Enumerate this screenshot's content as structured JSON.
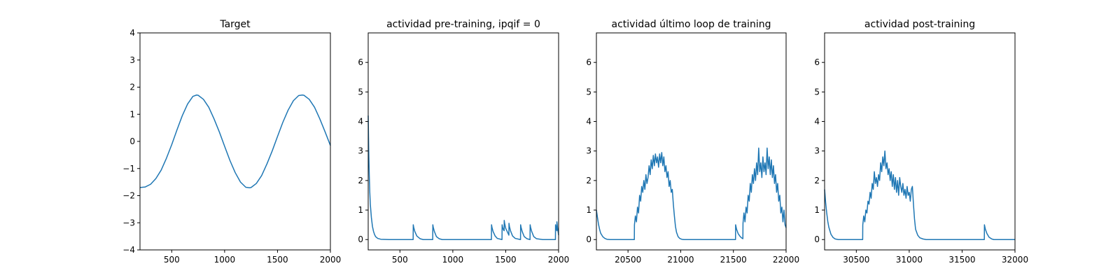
{
  "figure": {
    "line_color": "#1f77b4"
  },
  "chart_data": [
    {
      "type": "line",
      "title": "Target",
      "xlabel": "",
      "ylabel": "",
      "xlim": [
        200,
        2000
      ],
      "ylim": [
        -4,
        4
      ],
      "xticks": [
        500,
        1000,
        1500,
        2000
      ],
      "yticks": [
        -4,
        -3,
        -2,
        -1,
        0,
        1,
        2,
        3,
        4
      ],
      "grid": false,
      "series": [
        {
          "x": [
            200,
            250,
            300,
            350,
            400,
            450,
            500,
            550,
            600,
            650,
            700,
            735,
            750,
            800,
            850,
            900,
            950,
            1000,
            1050,
            1100,
            1150,
            1200,
            1235,
            1250,
            1300,
            1350,
            1400,
            1450,
            1500,
            1550,
            1600,
            1650,
            1700,
            1735,
            1750,
            1800,
            1850,
            1900,
            1950,
            2000
          ],
          "y": [
            -1.7,
            -1.68,
            -1.58,
            -1.37,
            -1.06,
            -0.62,
            -0.12,
            0.43,
            0.95,
            1.38,
            1.66,
            1.71,
            1.7,
            1.55,
            1.26,
            0.83,
            0.35,
            -0.18,
            -0.7,
            -1.15,
            -1.5,
            -1.69,
            -1.71,
            -1.7,
            -1.55,
            -1.26,
            -0.83,
            -0.35,
            0.18,
            0.7,
            1.15,
            1.5,
            1.69,
            1.71,
            1.7,
            1.55,
            1.26,
            0.83,
            0.35,
            -0.15
          ]
        }
      ]
    },
    {
      "type": "line",
      "title": "actividad pre-training, ipqif = 0",
      "xlabel": "",
      "ylabel": "",
      "xlim": [
        200,
        2000
      ],
      "ylim": [
        -0.35,
        7.0
      ],
      "xticks": [
        500,
        1000,
        1500,
        2000
      ],
      "yticks": [
        0,
        1,
        2,
        3,
        4,
        5,
        6
      ],
      "grid": false,
      "series": [
        {
          "x": [
            200,
            205,
            210,
            215,
            220,
            230,
            240,
            250,
            260,
            270,
            290,
            320,
            400,
            500,
            600,
            625,
            626,
            630,
            640,
            660,
            690,
            720,
            810,
            811,
            815,
            825,
            845,
            870,
            900,
            1000,
            1100,
            1200,
            1300,
            1365,
            1366,
            1370,
            1380,
            1400,
            1420,
            1465,
            1466,
            1470,
            1480,
            1485,
            1486,
            1490,
            1500,
            1530,
            1531,
            1535,
            1545,
            1565,
            1590,
            1640,
            1641,
            1645,
            1655,
            1675,
            1700,
            1730,
            1731,
            1735,
            1745,
            1765,
            1790,
            1850,
            1900,
            1970,
            1971,
            1975,
            1983,
            1984,
            1990,
            2000
          ],
          "y": [
            4.2,
            3.0,
            2.2,
            1.6,
            1.2,
            0.75,
            0.45,
            0.28,
            0.17,
            0.1,
            0.04,
            0.01,
            0,
            0,
            0,
            0,
            0.5,
            0.42,
            0.28,
            0.12,
            0.03,
            0,
            0,
            0.5,
            0.42,
            0.28,
            0.1,
            0.03,
            0,
            0,
            0,
            0,
            0,
            0,
            0.5,
            0.42,
            0.28,
            0.12,
            0.04,
            0,
            0.5,
            0.42,
            0.32,
            0.3,
            0.65,
            0.55,
            0.38,
            0.15,
            0.55,
            0.45,
            0.3,
            0.12,
            0.04,
            0,
            0.5,
            0.42,
            0.28,
            0.1,
            0.03,
            0,
            0.5,
            0.42,
            0.28,
            0.1,
            0.03,
            0,
            0,
            0,
            0.5,
            0.42,
            0.3,
            0.6,
            0.4,
            0.15
          ]
        }
      ]
    },
    {
      "type": "line",
      "title": "actividad último loop de training",
      "xlabel": "",
      "ylabel": "",
      "xlim": [
        20200,
        22000
      ],
      "ylim": [
        -0.35,
        7.0
      ],
      "xticks": [
        20500,
        21000,
        21500,
        22000
      ],
      "yticks": [
        0,
        1,
        2,
        3,
        4,
        5,
        6
      ],
      "grid": false,
      "series": [
        {
          "x": [
            20200,
            20210,
            20220,
            20230,
            20240,
            20260,
            20280,
            20300,
            20330,
            20400,
            20500,
            20560,
            20561,
            20570,
            20580,
            20590,
            20600,
            20610,
            20620,
            20630,
            20640,
            20650,
            20660,
            20670,
            20680,
            20690,
            20700,
            20710,
            20720,
            20730,
            20740,
            20750,
            20760,
            20770,
            20780,
            20790,
            20800,
            20810,
            20820,
            20830,
            20840,
            20850,
            20860,
            20870,
            20880,
            20890,
            20900,
            20910,
            20920,
            20930,
            20940,
            20950,
            20960,
            20975,
            20990,
            21010,
            21030,
            21060,
            21100,
            21200,
            21300,
            21400,
            21500,
            21520,
            21521,
            21530,
            21545,
            21565,
            21580,
            21590,
            21591,
            21600,
            21610,
            21620,
            21630,
            21640,
            21650,
            21660,
            21670,
            21680,
            21690,
            21700,
            21710,
            21720,
            21730,
            21740,
            21750,
            21760,
            21770,
            21780,
            21790,
            21800,
            21810,
            21820,
            21830,
            21840,
            21850,
            21860,
            21870,
            21880,
            21890,
            21900,
            21910,
            21920,
            21930,
            21940,
            21950,
            21960,
            21970,
            21980,
            21990,
            22000
          ],
          "y": [
            1.0,
            0.75,
            0.52,
            0.35,
            0.22,
            0.1,
            0.04,
            0.01,
            0,
            0,
            0,
            0,
            0.5,
            0.8,
            0.6,
            1.1,
            0.9,
            1.5,
            1.3,
            1.8,
            1.6,
            2.0,
            1.7,
            2.2,
            1.9,
            2.1,
            2.5,
            2.2,
            2.7,
            2.4,
            2.85,
            2.5,
            2.9,
            2.6,
            2.8,
            2.45,
            2.9,
            2.6,
            2.95,
            2.5,
            2.8,
            2.3,
            2.5,
            2.1,
            2.3,
            1.8,
            2.0,
            1.6,
            1.7,
            1.2,
            0.8,
            0.45,
            0.25,
            0.1,
            0.04,
            0.01,
            0,
            0,
            0,
            0,
            0,
            0,
            0,
            0,
            0.5,
            0.35,
            0.2,
            0.1,
            0.05,
            0.03,
            0.55,
            0.9,
            0.6,
            1.1,
            0.9,
            1.5,
            1.3,
            1.9,
            1.6,
            2.2,
            1.9,
            2.4,
            2.0,
            2.6,
            2.2,
            3.1,
            2.3,
            2.6,
            2.1,
            2.8,
            2.3,
            2.6,
            2.2,
            3.1,
            2.4,
            2.8,
            2.2,
            2.7,
            2.1,
            2.5,
            1.9,
            2.2,
            1.6,
            1.9,
            1.3,
            1.5,
            0.9,
            1.1,
            0.6,
            1.0,
            0.5,
            0.4
          ]
        }
      ]
    },
    {
      "type": "line",
      "title": "actividad post-training",
      "xlabel": "",
      "ylabel": "",
      "xlim": [
        30200,
        32000
      ],
      "ylim": [
        -0.35,
        7.0
      ],
      "xticks": [
        30500,
        31000,
        31500,
        32000
      ],
      "yticks": [
        0,
        1,
        2,
        3,
        4,
        5,
        6
      ],
      "grid": false,
      "series": [
        {
          "x": [
            30200,
            30210,
            30220,
            30230,
            30240,
            30260,
            30280,
            30300,
            30330,
            30400,
            30500,
            30560,
            30561,
            30570,
            30580,
            30590,
            30600,
            30610,
            30620,
            30630,
            30640,
            30650,
            30660,
            30670,
            30680,
            30690,
            30700,
            30710,
            30720,
            30730,
            30740,
            30750,
            30760,
            30770,
            30780,
            30790,
            30800,
            30810,
            30820,
            30830,
            30840,
            30850,
            30860,
            30870,
            30880,
            30890,
            30900,
            30910,
            30920,
            30930,
            30940,
            30950,
            30960,
            30970,
            30980,
            30990,
            31000,
            31010,
            31020,
            31030,
            31040,
            31050,
            31060,
            31080,
            31100,
            31130,
            31160,
            31200,
            31300,
            31400,
            31500,
            31600,
            31700,
            31710,
            31711,
            31720,
            31735,
            31755,
            31780,
            31800,
            31900,
            32000
          ],
          "y": [
            1.7,
            1.25,
            0.9,
            0.62,
            0.42,
            0.18,
            0.07,
            0.02,
            0,
            0,
            0,
            0,
            0.5,
            0.8,
            0.6,
            1.0,
            0.9,
            1.3,
            1.2,
            1.6,
            1.4,
            1.9,
            1.7,
            2.3,
            1.9,
            2.1,
            1.8,
            2.2,
            2.0,
            2.6,
            2.3,
            2.8,
            2.5,
            3.0,
            2.4,
            2.6,
            2.2,
            2.4,
            2.0,
            2.3,
            1.8,
            2.2,
            1.7,
            2.1,
            1.6,
            2.0,
            1.5,
            2.1,
            1.8,
            1.6,
            1.9,
            1.5,
            1.7,
            1.4,
            1.8,
            1.5,
            1.6,
            1.3,
            1.7,
            1.8,
            1.2,
            0.7,
            0.35,
            0.15,
            0.06,
            0.02,
            0,
            0,
            0,
            0,
            0,
            0,
            0,
            0,
            0.5,
            0.35,
            0.2,
            0.08,
            0.02,
            0,
            0,
            0
          ]
        }
      ]
    }
  ]
}
